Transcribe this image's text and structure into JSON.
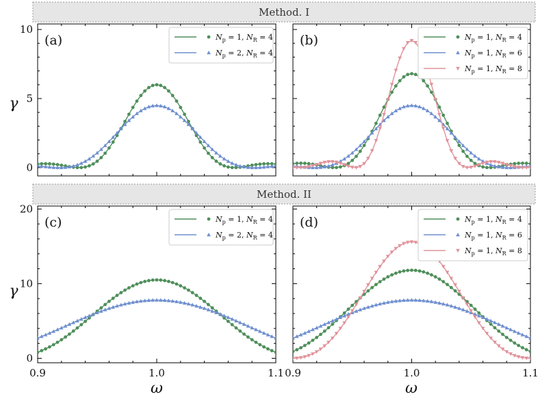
{
  "banners": {
    "top": "Method. I",
    "bottom": "Method. II"
  },
  "axes": {
    "xlabel": "ω",
    "ylabel": "γ",
    "xticks": [
      "0.9",
      "1.0",
      "1.1"
    ],
    "yticks_top": [
      "0",
      "5",
      "10"
    ],
    "yticks_bottom": [
      "0",
      "10",
      "20"
    ]
  },
  "colors": {
    "green": "#4f8f5a",
    "blue": "#6f8fcf",
    "pink": "#e0939b"
  },
  "chart_data": [
    {
      "type": "line",
      "panel": "(a)",
      "method": "Method. I",
      "xlim": [
        0.9,
        1.1
      ],
      "ylim": [
        -0.6,
        10.4
      ],
      "xlabel": "",
      "ylabel": "γ",
      "series": [
        {
          "name": "N_p = 1, N_R = 4",
          "label_parts": [
            "N",
            "p",
            " = 1, ",
            "N",
            "R",
            " = 4"
          ],
          "color": "#4f8f5a",
          "marker": "circle",
          "peak": 6.0,
          "width_param": 4
        },
        {
          "name": "N_p = 2, N_R = 4",
          "label_parts": [
            "N",
            "p",
            " = 2, ",
            "N",
            "R",
            " = 4"
          ],
          "color": "#6f8fcf",
          "marker": "triangle-up",
          "peak": 4.5,
          "width_param": 3.2
        }
      ]
    },
    {
      "type": "line",
      "panel": "(b)",
      "method": "Method. I",
      "xlim": [
        0.9,
        1.1
      ],
      "ylim": [
        -0.6,
        10.4
      ],
      "xlabel": "",
      "ylabel": "",
      "series": [
        {
          "name": "N_p = 1, N_R = 4",
          "label_parts": [
            "N",
            "p",
            " = 1, ",
            "N",
            "R",
            " = 4"
          ],
          "color": "#4f8f5a",
          "marker": "circle",
          "peak": 6.8,
          "width_param": 4
        },
        {
          "name": "N_p = 1, N_R = 6",
          "label_parts": [
            "N",
            "p",
            " = 1, ",
            "N",
            "R",
            " = 6"
          ],
          "color": "#6f8fcf",
          "marker": "triangle-up",
          "peak": 4.5,
          "width_param": 3.2
        },
        {
          "name": "N_p = 1, N_R = 8",
          "label_parts": [
            "N",
            "p",
            " = 1, ",
            "N",
            "R",
            " = 8"
          ],
          "color": "#e0939b",
          "marker": "triangle-down",
          "peak": 9.2,
          "width_param": 5.5
        }
      ]
    },
    {
      "type": "line",
      "panel": "(c)",
      "method": "Method. II",
      "xlim": [
        0.9,
        1.1
      ],
      "ylim": [
        -0.6,
        20.4
      ],
      "xlabel": "ω",
      "ylabel": "γ",
      "series": [
        {
          "name": "N_p = 1, N_R = 4",
          "label_parts": [
            "N",
            "p",
            " = 1, ",
            "N",
            "R",
            " = 4"
          ],
          "color": "#4f8f5a",
          "marker": "circle",
          "peak": 10.5,
          "width_param": 2
        },
        {
          "name": "N_p = 2, N_R = 4",
          "label_parts": [
            "N",
            "p",
            " = 2, ",
            "N",
            "R",
            " = 4"
          ],
          "color": "#6f8fcf",
          "marker": "triangle-up",
          "peak": 7.8,
          "width_param": 1.4
        }
      ]
    },
    {
      "type": "line",
      "panel": "(d)",
      "method": "Method. II",
      "xlim": [
        0.9,
        1.1
      ],
      "ylim": [
        -0.6,
        20.4
      ],
      "xlabel": "ω",
      "ylabel": "",
      "series": [
        {
          "name": "N_p = 1, N_R = 4",
          "label_parts": [
            "N",
            "p",
            " = 1, ",
            "N",
            "R",
            " = 4"
          ],
          "color": "#4f8f5a",
          "marker": "circle",
          "peak": 11.8,
          "width_param": 2
        },
        {
          "name": "N_p = 1, N_R = 6",
          "label_parts": [
            "N",
            "p",
            " = 1, ",
            "N",
            "R",
            " = 6"
          ],
          "color": "#6f8fcf",
          "marker": "triangle-up",
          "peak": 7.8,
          "width_param": 1.4
        },
        {
          "name": "N_p = 1, N_R = 8",
          "label_parts": [
            "N",
            "p",
            " = 1, ",
            "N",
            "R",
            " = 8"
          ],
          "color": "#e0939b",
          "marker": "triangle-down",
          "peak": 15.6,
          "width_param": 2.6
        }
      ]
    }
  ]
}
